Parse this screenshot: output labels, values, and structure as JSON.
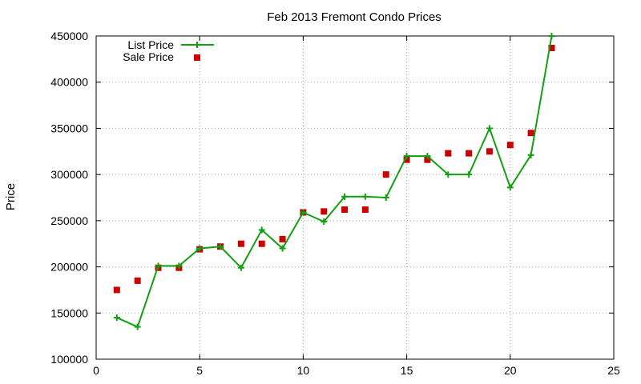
{
  "chart_data": {
    "type": "line",
    "title": "Feb 2013 Fremont Condo Prices",
    "xlabel": "",
    "ylabel": "Price",
    "xlim": [
      0,
      25
    ],
    "ylim": [
      100000,
      450000
    ],
    "x_ticks": [
      0,
      5,
      10,
      15,
      20,
      25
    ],
    "y_ticks": [
      100000,
      150000,
      200000,
      250000,
      300000,
      350000,
      400000,
      450000
    ],
    "grid": true,
    "legend": "top-left",
    "series": [
      {
        "name": "List Price",
        "style": "line+cross",
        "color": "#12a012",
        "x": [
          1,
          2,
          3,
          4,
          5,
          6,
          7,
          8,
          9,
          10,
          11,
          12,
          13,
          14,
          15,
          16,
          17,
          18,
          19,
          20,
          21,
          22
        ],
        "values": [
          145000,
          135000,
          201000,
          201000,
          220000,
          222000,
          199000,
          240000,
          220000,
          259000,
          249000,
          276000,
          276000,
          275000,
          320000,
          320000,
          300000,
          300000,
          350000,
          286000,
          321000,
          450000
        ]
      },
      {
        "name": "Sale Price",
        "style": "square",
        "color": "#cc0000",
        "x": [
          1,
          2,
          3,
          4,
          5,
          6,
          7,
          8,
          9,
          10,
          11,
          12,
          13,
          14,
          15,
          16,
          17,
          18,
          19,
          20,
          21,
          22
        ],
        "values": [
          175000,
          185000,
          199000,
          199000,
          219000,
          222000,
          225000,
          225000,
          230000,
          259000,
          260000,
          262000,
          262000,
          300000,
          316000,
          316000,
          323000,
          323000,
          325000,
          332000,
          345000,
          437000
        ]
      }
    ]
  }
}
